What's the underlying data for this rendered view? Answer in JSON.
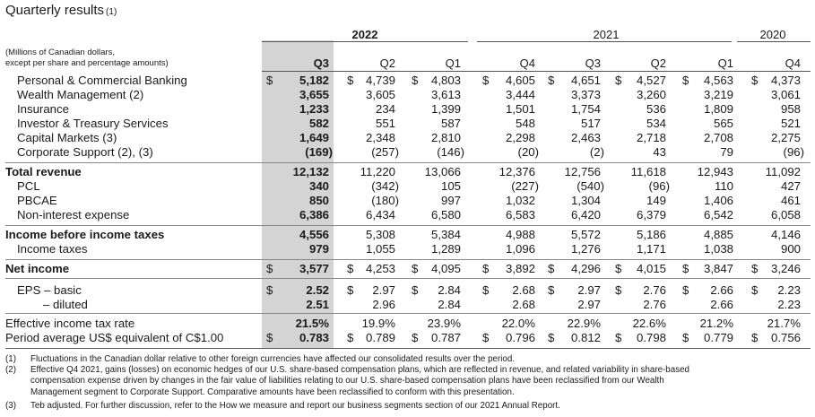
{
  "title": "Quarterly results",
  "title_note": "(1)",
  "header_note_line1": "(Millions of Canadian dollars,",
  "header_note_line2": "except per share and percentage amounts)",
  "years": [
    "2022",
    "2021",
    "2020"
  ],
  "quarters": [
    "Q3",
    "Q2",
    "Q1",
    "Q4",
    "Q3",
    "Q2",
    "Q1",
    "Q4"
  ],
  "rows": [
    {
      "label": "Personal & Commercial Banking",
      "dollar": true,
      "values": [
        "5,182",
        "4,739",
        "4,803",
        "4,605",
        "4,651",
        "4,527",
        "4,563",
        "4,373"
      ]
    },
    {
      "label": "Wealth Management (2)",
      "values": [
        "3,655",
        "3,605",
        "3,613",
        "3,444",
        "3,373",
        "3,260",
        "3,219",
        "3,061"
      ]
    },
    {
      "label": "Insurance",
      "values": [
        "1,233",
        "234",
        "1,399",
        "1,501",
        "1,754",
        "536",
        "1,809",
        "958"
      ]
    },
    {
      "label": "Investor & Treasury Services",
      "values": [
        "582",
        "551",
        "587",
        "548",
        "517",
        "534",
        "565",
        "521"
      ]
    },
    {
      "label": "Capital Markets (3)",
      "values": [
        "1,649",
        "2,348",
        "2,810",
        "2,298",
        "2,463",
        "2,718",
        "2,708",
        "2,275"
      ]
    },
    {
      "label": "Corporate Support (2), (3)",
      "values": [
        "(169)",
        "(257)",
        "(146)",
        "(20)",
        "(2)",
        "43",
        "79",
        "(96)"
      ]
    },
    {
      "label": "Total revenue",
      "bold": true,
      "values": [
        "12,132",
        "11,220",
        "13,066",
        "12,376",
        "12,756",
        "11,618",
        "12,943",
        "11,092"
      ]
    },
    {
      "label": "PCL",
      "values": [
        "340",
        "(342)",
        "105",
        "(227)",
        "(540)",
        "(96)",
        "110",
        "427"
      ]
    },
    {
      "label": "PBCAE",
      "values": [
        "850",
        "(180)",
        "997",
        "1,032",
        "1,304",
        "149",
        "1,406",
        "461"
      ]
    },
    {
      "label": "Non-interest expense",
      "values": [
        "6,386",
        "6,434",
        "6,580",
        "6,583",
        "6,420",
        "6,379",
        "6,542",
        "6,058"
      ]
    },
    {
      "label": "Income before income taxes",
      "bold": true,
      "values": [
        "4,556",
        "5,308",
        "5,384",
        "4,988",
        "5,572",
        "5,186",
        "4,885",
        "4,146"
      ]
    },
    {
      "label": "Income taxes",
      "values": [
        "979",
        "1,055",
        "1,289",
        "1,096",
        "1,276",
        "1,171",
        "1,038",
        "900"
      ]
    },
    {
      "label": "Net income",
      "bold": true,
      "dollar": true,
      "values": [
        "3,577",
        "4,253",
        "4,095",
        "3,892",
        "4,296",
        "4,015",
        "3,847",
        "3,246"
      ]
    },
    {
      "label": "EPS – basic",
      "dollar": true,
      "values": [
        "2.52",
        "2.97",
        "2.84",
        "2.68",
        "2.97",
        "2.76",
        "2.66",
        "2.23"
      ]
    },
    {
      "label": "– diluted",
      "values": [
        "2.51",
        "2.96",
        "2.84",
        "2.68",
        "2.97",
        "2.76",
        "2.66",
        "2.23"
      ]
    },
    {
      "label": "Effective income tax rate",
      "values": [
        "21.5%",
        "19.9%",
        "23.9%",
        "22.0%",
        "22.9%",
        "22.6%",
        "21.2%",
        "21.7%"
      ]
    },
    {
      "label": "Period average US$ equivalent of C$1.00",
      "dollar": true,
      "values": [
        "0.783",
        "0.789",
        "0.787",
        "0.796",
        "0.812",
        "0.798",
        "0.779",
        "0.756"
      ]
    }
  ],
  "dollar_sign": "$",
  "footnotes": [
    {
      "num": "(1)",
      "lines": [
        "Fluctuations in the Canadian dollar relative to other foreign currencies have affected our consolidated results over the period."
      ]
    },
    {
      "num": "(2)",
      "lines": [
        "Effective Q4 2021, gains (losses) on economic hedges of our U.S. share-based compensation plans, which are reflected in revenue, and related variability in share-based",
        "compensation expense driven by changes in the fair value of liabilities relating to our U.S. share-based compensation plans have been reclassified from our Wealth",
        "Management segment to Corporate Support. Comparative amounts have been reclassified to conform with this presentation."
      ]
    },
    {
      "num": "(3)",
      "lines": [
        "Teb adjusted. For further discussion, refer to the How we measure and report our business segments section of our 2021 Annual Report."
      ]
    }
  ]
}
